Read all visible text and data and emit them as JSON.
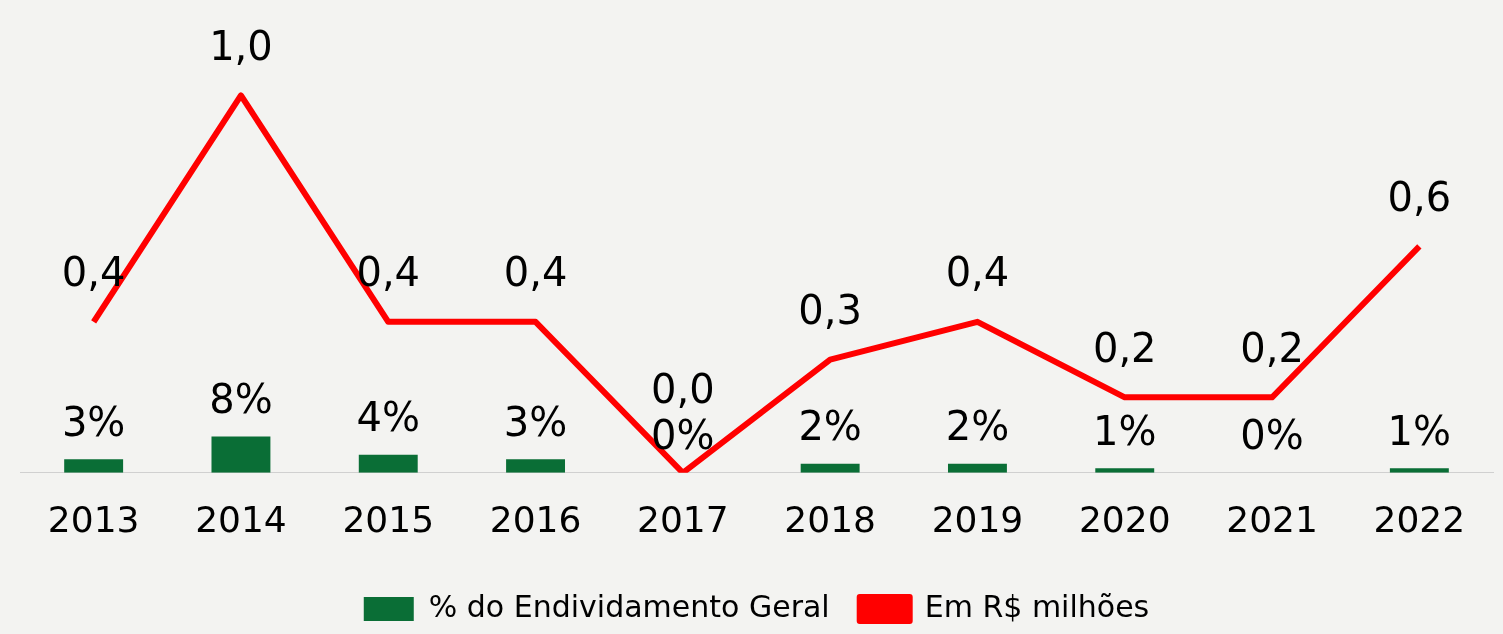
{
  "chart_data": {
    "type": "bar",
    "categories": [
      "2013",
      "2014",
      "2015",
      "2016",
      "2017",
      "2018",
      "2019",
      "2020",
      "2021",
      "2022"
    ],
    "series": [
      {
        "name": "% do Endividamento Geral",
        "color": "#0a6e36",
        "values": [
          3,
          8,
          4,
          3,
          0,
          2,
          2,
          1,
          0,
          1
        ],
        "value_labels": [
          "3%",
          "8%",
          "4%",
          "3%",
          "0%",
          "2%",
          "2%",
          "1%",
          "0%",
          "1%"
        ]
      },
      {
        "name": "Em R$ milhões",
        "type": "line",
        "axis": "y2",
        "color": "#ff0000",
        "marker": "none",
        "line_style": "solid",
        "values": [
          0.4,
          1.0,
          0.4,
          0.4,
          0.0,
          0.3,
          0.4,
          0.2,
          0.2,
          0.6
        ],
        "value_labels": [
          "0,4",
          "1,0",
          "0,4",
          "0,4",
          "0,0",
          "0,3",
          "0,4",
          "0,2",
          "0,2",
          "0,6"
        ]
      }
    ],
    "legend": "bottom",
    "grid": false
  }
}
